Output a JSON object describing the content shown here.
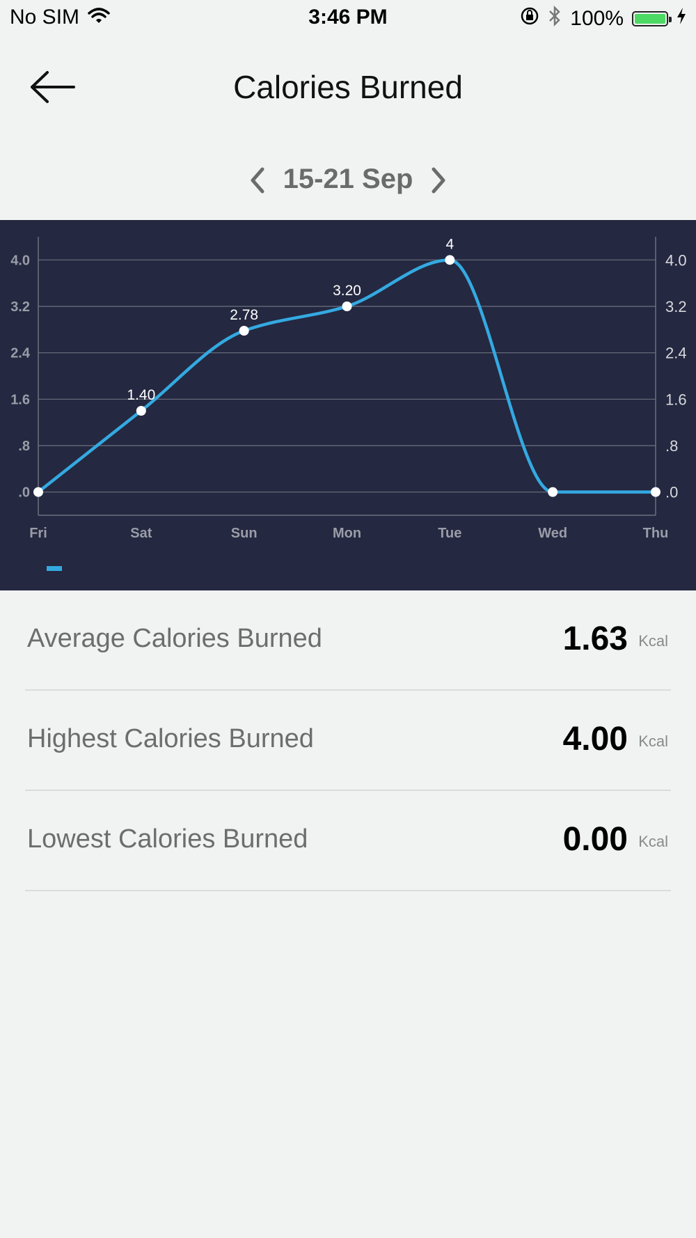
{
  "status_bar": {
    "carrier": "No SIM",
    "time": "3:46 PM",
    "battery_percent": "100%",
    "battery_level": 1.0,
    "icons": [
      "wifi-icon",
      "rotation-lock-icon",
      "bluetooth-icon",
      "battery-icon",
      "charging-icon"
    ]
  },
  "header": {
    "title": "Calories Burned",
    "back_icon": "arrow-left-icon"
  },
  "date_nav": {
    "label": "15-21 Sep",
    "prev_icon": "chevron-left-icon",
    "next_icon": "chevron-right-icon"
  },
  "chart_data": {
    "type": "line",
    "categories": [
      "Fri",
      "Sat",
      "Sun",
      "Mon",
      "Tue",
      "Wed",
      "Thu"
    ],
    "series": [
      {
        "values": [
          0,
          1.4,
          2.78,
          3.2,
          4,
          0,
          0
        ],
        "value_labels": [
          "",
          "1.40",
          "2.78",
          "3.20",
          "4",
          "",
          ""
        ],
        "color": "#34a9e1"
      }
    ],
    "y_ticks": [
      ".0",
      ".8",
      "1.6",
      "2.4",
      "3.2",
      "4.0"
    ],
    "y_tick_values": [
      0,
      0.8,
      1.6,
      2.4,
      3.2,
      4.0
    ],
    "ylim": [
      -0.4,
      4.4
    ],
    "grid": true,
    "smooth": true,
    "legend": "bottom-left",
    "background": "#242840"
  },
  "stats": [
    {
      "label": "Average Calories Burned",
      "value": "1.63",
      "unit": "Kcal"
    },
    {
      "label": "Highest Calories Burned",
      "value": "4.00",
      "unit": "Kcal"
    },
    {
      "label": "Lowest Calories Burned",
      "value": "0.00",
      "unit": "Kcal"
    }
  ]
}
